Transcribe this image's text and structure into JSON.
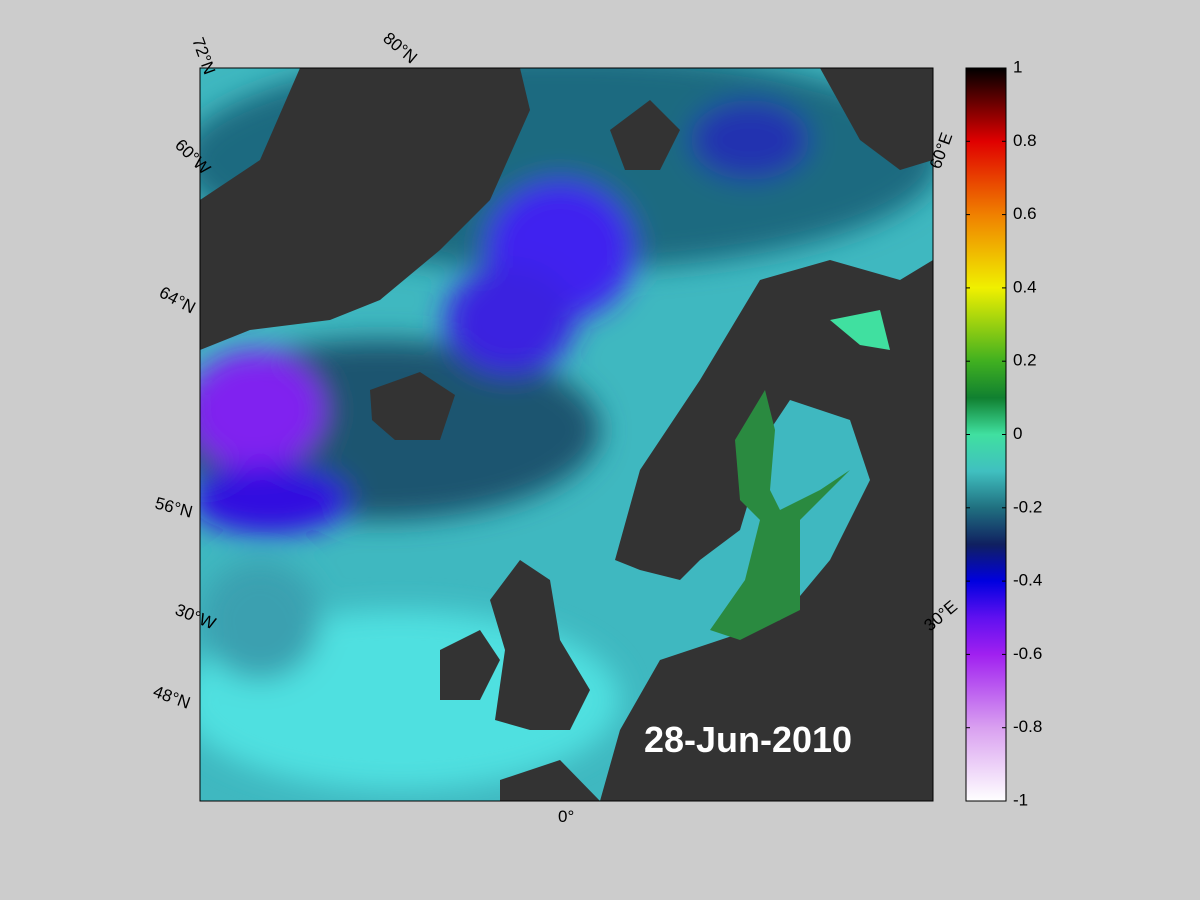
{
  "map": {
    "labels": {
      "lat_72": "72°N",
      "lat_80": "80°N",
      "lon_60w": "60°W",
      "lat_64": "64°N",
      "lat_56": "56°N",
      "lon_30w": "30°W",
      "lat_48": "48°N",
      "lon_0": "0°",
      "lon_60e": "60°E",
      "lon_30e": "30°E"
    },
    "date": "28-Jun-2010"
  },
  "colorbar": {
    "lim": [
      -1,
      1
    ],
    "ticks": [
      1,
      0.8,
      0.6,
      0.4,
      0.2,
      0,
      -0.2,
      -0.4,
      -0.6,
      -0.8,
      -1
    ]
  }
}
